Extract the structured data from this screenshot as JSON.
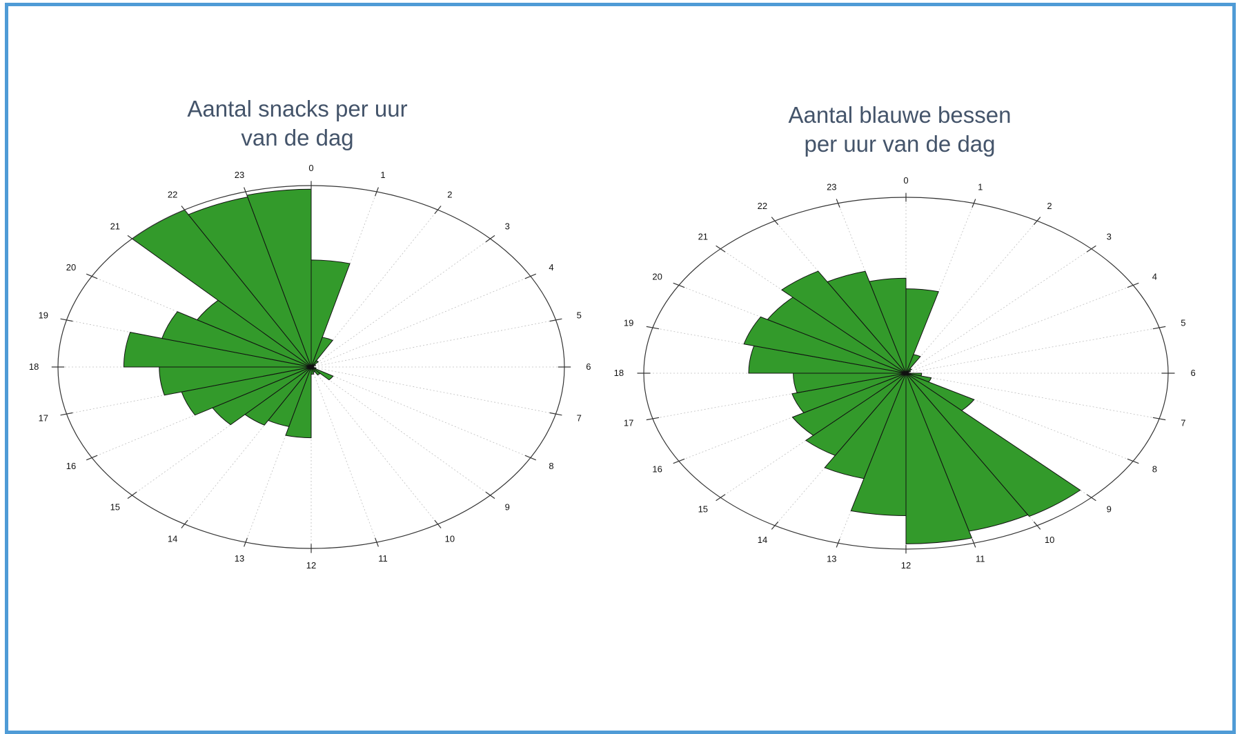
{
  "colors": {
    "frame": "#4f9bd6",
    "bar_fill": "#339a2b",
    "bar_stroke": "#111111",
    "title": "#44546a",
    "grid": "#bdbdbd",
    "axis": "#333333"
  },
  "chart_data": [
    {
      "type": "rose",
      "title": "Aantal snacks per uur\nvan de dag",
      "theta_labels": [
        "0",
        "1",
        "2",
        "3",
        "4",
        "5",
        "6",
        "7",
        "8",
        "9",
        "10",
        "11",
        "12",
        "13",
        "14",
        "15",
        "16",
        "17",
        "18",
        "19",
        "20",
        "21",
        "22",
        "23"
      ],
      "rlim": [
        0,
        1
      ],
      "values": [
        0.59,
        0.17,
        0.04,
        0.02,
        0.01,
        0.01,
        0.01,
        0.02,
        0.1,
        0.05,
        0.03,
        0.04,
        0.39,
        0.34,
        0.37,
        0.45,
        0.53,
        0.6,
        0.74,
        0.61,
        0.52,
        1.0,
        0.97,
        0.98
      ],
      "bar_fill": "#339a2b",
      "grid": true
    },
    {
      "type": "rose",
      "title": "Aantal blauwe bessen\nper uur van de dag",
      "theta_labels": [
        "0",
        "1",
        "2",
        "3",
        "4",
        "5",
        "6",
        "7",
        "8",
        "9",
        "10",
        "11",
        "12",
        "13",
        "14",
        "15",
        "16",
        "17",
        "18",
        "19",
        "20",
        "21",
        "22",
        "23"
      ],
      "rlim": [
        0,
        1
      ],
      "values": [
        0.48,
        0.11,
        0.03,
        0.02,
        0.01,
        0.01,
        0.06,
        0.1,
        0.3,
        0.94,
        0.93,
        0.97,
        0.81,
        0.62,
        0.54,
        0.5,
        0.45,
        0.43,
        0.6,
        0.64,
        0.61,
        0.67,
        0.6,
        0.54
      ],
      "bar_fill": "#339a2b",
      "grid": true
    }
  ]
}
